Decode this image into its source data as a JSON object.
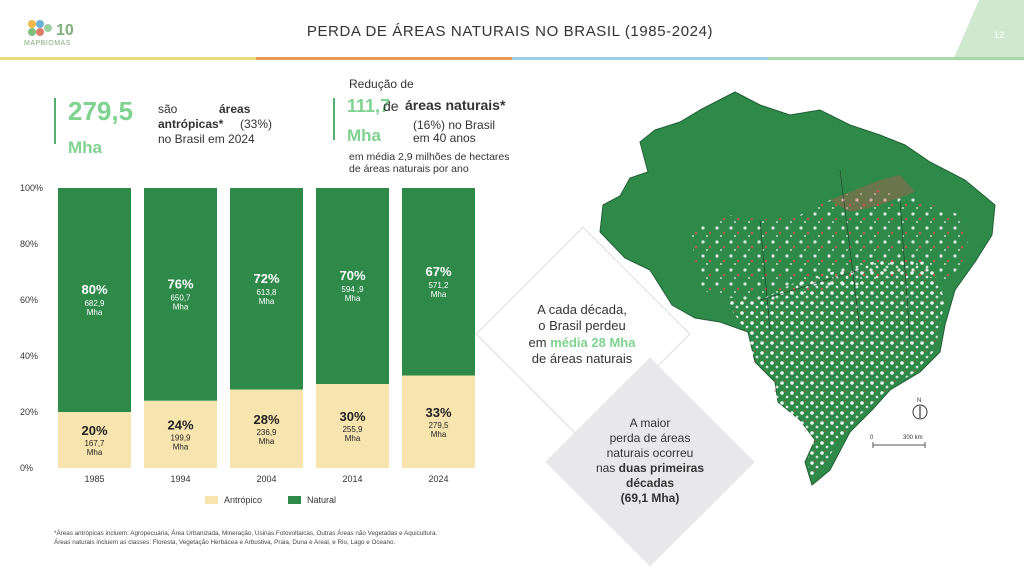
{
  "header": {
    "logo_text": "MAPBIOMAS",
    "logo_badge": "10",
    "title": "PERDA DE ÁREAS NATURAIS NO BRASIL (1985-2024)",
    "page_number": "12"
  },
  "stat1": {
    "value": "279,5",
    "unit": "Mha",
    "line1_pre": "são",
    "line1_bold": "áreas",
    "line2_bold": "antrópicas*",
    "line2_post": "(33%)",
    "line3": "no Brasil em 2024"
  },
  "stat2": {
    "intro": "Redução de",
    "value": "111,7",
    "unit": "Mha",
    "line1_pre": "de",
    "line1_bold": "áreas naturais*",
    "line2": "(16%) no Brasil",
    "line3": "em 40 anos",
    "sub1": "em média 2,9 milhões de hectares",
    "sub2": "de áreas naturais por ano"
  },
  "chart_data": {
    "type": "bar",
    "stacked": true,
    "categories": [
      "1985",
      "1994",
      "2004",
      "2014",
      "2024"
    ],
    "series": [
      {
        "name": "Antrópico",
        "percent": [
          20,
          24,
          28,
          30,
          33
        ],
        "labels": [
          "20%",
          "24%",
          "28%",
          "30%",
          "33%"
        ],
        "mha": [
          "167,7",
          "199,9",
          "236,9",
          "255,9",
          "279,5"
        ],
        "color": "#f7e4ae"
      },
      {
        "name": "Natural",
        "percent": [
          80,
          76,
          72,
          70,
          67
        ],
        "labels": [
          "80%",
          "76%",
          "72%",
          "70%",
          "67%"
        ],
        "mha": [
          "682,9",
          "650,7",
          "613,8",
          "594 ,9",
          "571,2"
        ],
        "color": "#2f8a4a"
      }
    ],
    "unit_label": "Mha",
    "yticks": [
      "0%",
      "20%",
      "40%",
      "60%",
      "80%",
      "100%"
    ],
    "ylim": [
      0,
      100
    ]
  },
  "diamond1": {
    "line1": "A cada década,",
    "line2": "o Brasil perdeu",
    "line3_pre": "em",
    "line3_bold": "média 28 Mha",
    "line4": "de áreas naturais"
  },
  "diamond2": {
    "line1": "A maior",
    "line2": "perda de áreas",
    "line3": "naturais ocorreu",
    "line4_pre": "nas",
    "line4_bold": "duas primeiras",
    "line5": "décadas",
    "line6": "(69,1 Mha)"
  },
  "map": {
    "north": "N",
    "scale_0": "0",
    "scale_1": "300 km"
  },
  "footnote": {
    "line1": "*Áreas antrópicas incluem: Agropecuária, Área Urbanizada, Mineração, Usinas Fotovoltaicas, Outras Áreas não Vegetadas e Aquicultura.",
    "line2": "Áreas naturais incluem as classes: Floresta, Vegetação Herbácea e Arbustiva, Praia, Duna e Areal, e Rio, Lago e Oceano."
  },
  "colors": {
    "natural": "#2f8a4a",
    "antropico": "#f7e4ae",
    "accent_green": "#7fd28f",
    "diamond1": "#ffffff",
    "diamond2": "#e8e8ea"
  }
}
